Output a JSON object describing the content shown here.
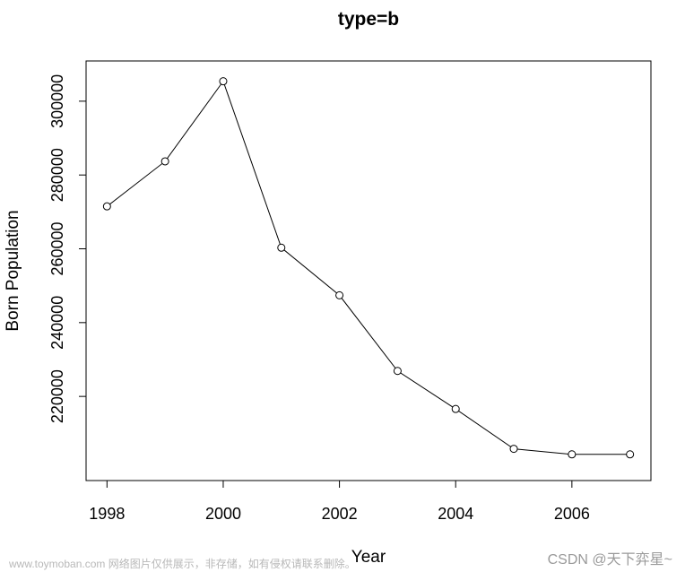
{
  "chart_data": {
    "type": "line",
    "title": "type=b",
    "xlabel": "Year",
    "ylabel": "Born Population",
    "x": [
      1998,
      1999,
      2000,
      2001,
      2002,
      2003,
      2004,
      2005,
      2006,
      2007
    ],
    "y": [
      271500,
      283700,
      305400,
      260300,
      247400,
      226900,
      216600,
      205800,
      204300,
      204300
    ],
    "xlim": [
      1997.64,
      2007.36
    ],
    "ylim": [
      197200,
      310900
    ],
    "xticks": [
      1998,
      2000,
      2002,
      2004,
      2006
    ],
    "yticks": [
      220000,
      240000,
      260000,
      280000,
      300000
    ],
    "xtick_labels": [
      "1998",
      "2000",
      "2002",
      "2004",
      "2006"
    ],
    "ytick_labels": [
      "220000",
      "240000",
      "260000",
      "280000",
      "300000"
    ],
    "grid": false,
    "marker": "open-circle"
  },
  "watermark": {
    "left": "www.toymoban.com 网络图片仅供展示，非存储，如有侵权请联系删除。",
    "right": "CSDN @天下弈星~"
  }
}
